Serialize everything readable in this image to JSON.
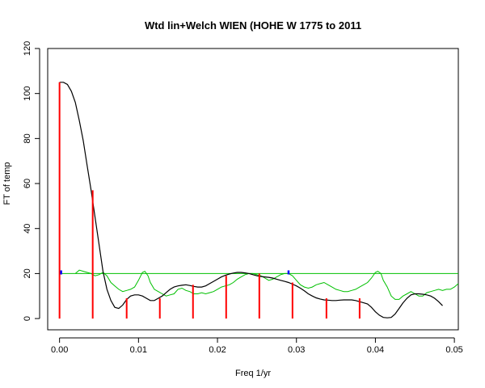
{
  "chart_data": {
    "type": "line",
    "title": "Wtd lin+Welch WIEN (HOHE W 1775 to 2011",
    "xlabel": "Freq 1/yr",
    "ylabel": "FT of temp",
    "xlim": [
      -0.0015,
      0.0505
    ],
    "ylim": [
      -5,
      120
    ],
    "x_ticks": [
      "0.00",
      "0.01",
      "0.02",
      "0.03",
      "0.04",
      "0.05"
    ],
    "y_ticks": [
      "0",
      "20",
      "40",
      "60",
      "80",
      "100",
      "120"
    ],
    "grid": false,
    "legend": "none",
    "colors": {
      "curve": "#000000",
      "noise": "#00c000",
      "threshold": "#00c000",
      "harmonics": "#ff0000",
      "markers": "#0000ff"
    },
    "series": [
      {
        "style": "black-line",
        "points": [
          [
            0.0,
            105
          ],
          [
            0.0005,
            105
          ],
          [
            0.001,
            104
          ],
          [
            0.0015,
            101
          ],
          [
            0.002,
            96
          ],
          [
            0.0025,
            88
          ],
          [
            0.003,
            79
          ],
          [
            0.0035,
            68
          ],
          [
            0.004,
            57
          ],
          [
            0.0045,
            45
          ],
          [
            0.005,
            33
          ],
          [
            0.0055,
            21
          ],
          [
            0.006,
            13
          ],
          [
            0.0065,
            8
          ],
          [
            0.007,
            5
          ],
          [
            0.0075,
            4.5
          ],
          [
            0.008,
            6
          ],
          [
            0.0085,
            8.5
          ],
          [
            0.009,
            10
          ],
          [
            0.0095,
            10.5
          ],
          [
            0.01,
            10.5
          ],
          [
            0.0105,
            10
          ],
          [
            0.011,
            9
          ],
          [
            0.0115,
            8
          ],
          [
            0.012,
            8
          ],
          [
            0.0125,
            9
          ],
          [
            0.013,
            10
          ],
          [
            0.0135,
            11.5
          ],
          [
            0.014,
            13
          ],
          [
            0.0145,
            14
          ],
          [
            0.015,
            14.5
          ],
          [
            0.0155,
            14.8
          ],
          [
            0.016,
            15
          ],
          [
            0.0165,
            14.7
          ],
          [
            0.017,
            14.3
          ],
          [
            0.0175,
            14
          ],
          [
            0.018,
            14
          ],
          [
            0.0185,
            14.5
          ],
          [
            0.019,
            15.5
          ],
          [
            0.0195,
            16.5
          ],
          [
            0.02,
            17.5
          ],
          [
            0.0205,
            18.5
          ],
          [
            0.021,
            19.2
          ],
          [
            0.0215,
            19.8
          ],
          [
            0.022,
            20.2
          ],
          [
            0.0225,
            20.5
          ],
          [
            0.023,
            20.5
          ],
          [
            0.0235,
            20.3
          ],
          [
            0.024,
            20
          ],
          [
            0.0245,
            19.5
          ],
          [
            0.025,
            19
          ],
          [
            0.0255,
            18.7
          ],
          [
            0.026,
            18.5
          ],
          [
            0.0265,
            18.3
          ],
          [
            0.027,
            18
          ],
          [
            0.0275,
            17.5
          ],
          [
            0.028,
            17
          ],
          [
            0.0285,
            16.5
          ],
          [
            0.029,
            16
          ],
          [
            0.0295,
            15.3
          ],
          [
            0.03,
            14.5
          ],
          [
            0.0305,
            13.5
          ],
          [
            0.031,
            12.3
          ],
          [
            0.0315,
            11
          ],
          [
            0.032,
            10
          ],
          [
            0.0325,
            9.2
          ],
          [
            0.033,
            8.7
          ],
          [
            0.0335,
            8.3
          ],
          [
            0.034,
            8.2
          ],
          [
            0.0345,
            8
          ],
          [
            0.035,
            8
          ],
          [
            0.0355,
            8.2
          ],
          [
            0.036,
            8.3
          ],
          [
            0.0365,
            8.3
          ],
          [
            0.037,
            8.3
          ],
          [
            0.0375,
            8
          ],
          [
            0.038,
            7.5
          ],
          [
            0.0385,
            7
          ],
          [
            0.039,
            6.5
          ],
          [
            0.0395,
            5
          ],
          [
            0.04,
            3
          ],
          [
            0.0405,
            1.5
          ],
          [
            0.041,
            0.5
          ],
          [
            0.0415,
            0.3
          ],
          [
            0.042,
            0.5
          ],
          [
            0.0425,
            2
          ],
          [
            0.043,
            4.5
          ],
          [
            0.0435,
            7
          ],
          [
            0.044,
            9
          ],
          [
            0.0445,
            10.5
          ],
          [
            0.045,
            11
          ],
          [
            0.0455,
            11
          ],
          [
            0.046,
            10.8
          ],
          [
            0.0465,
            10.5
          ],
          [
            0.047,
            10
          ],
          [
            0.0475,
            9
          ],
          [
            0.048,
            7.5
          ],
          [
            0.0485,
            5.7
          ]
        ]
      },
      {
        "style": "green-noise-line",
        "points": [
          [
            0.002,
            20
          ],
          [
            0.0025,
            21.5
          ],
          [
            0.003,
            21
          ],
          [
            0.0035,
            20.5
          ],
          [
            0.004,
            20
          ],
          [
            0.0045,
            19
          ],
          [
            0.005,
            19.5
          ],
          [
            0.0055,
            20.5
          ],
          [
            0.006,
            19
          ],
          [
            0.0065,
            16
          ],
          [
            0.007,
            14.5
          ],
          [
            0.0075,
            13
          ],
          [
            0.008,
            12
          ],
          [
            0.0085,
            12.5
          ],
          [
            0.009,
            13
          ],
          [
            0.0095,
            14
          ],
          [
            0.01,
            17
          ],
          [
            0.0105,
            20.5
          ],
          [
            0.0108,
            21
          ],
          [
            0.0112,
            19
          ],
          [
            0.0115,
            16
          ],
          [
            0.012,
            13
          ],
          [
            0.0125,
            12
          ],
          [
            0.013,
            11
          ],
          [
            0.0135,
            10
          ],
          [
            0.014,
            10.5
          ],
          [
            0.0145,
            11
          ],
          [
            0.015,
            13
          ],
          [
            0.0155,
            13.5
          ],
          [
            0.016,
            12.5
          ],
          [
            0.0165,
            12
          ],
          [
            0.017,
            11
          ],
          [
            0.0175,
            11
          ],
          [
            0.018,
            11.5
          ],
          [
            0.0185,
            11
          ],
          [
            0.019,
            11.5
          ],
          [
            0.0195,
            12
          ],
          [
            0.02,
            13
          ],
          [
            0.0205,
            14
          ],
          [
            0.021,
            14.5
          ],
          [
            0.0215,
            15
          ],
          [
            0.022,
            16
          ],
          [
            0.0225,
            17.5
          ],
          [
            0.023,
            18.5
          ],
          [
            0.0235,
            19.5
          ],
          [
            0.024,
            20
          ],
          [
            0.0245,
            20
          ],
          [
            0.025,
            19.5
          ],
          [
            0.0255,
            19
          ],
          [
            0.026,
            18
          ],
          [
            0.0265,
            17
          ],
          [
            0.027,
            17.5
          ],
          [
            0.0275,
            18.5
          ],
          [
            0.028,
            19.5
          ],
          [
            0.0285,
            20
          ],
          [
            0.029,
            20
          ],
          [
            0.0295,
            19
          ],
          [
            0.03,
            17
          ],
          [
            0.0305,
            15
          ],
          [
            0.031,
            14
          ],
          [
            0.0315,
            13.5
          ],
          [
            0.032,
            14
          ],
          [
            0.0325,
            15
          ],
          [
            0.033,
            15.5
          ],
          [
            0.0335,
            16
          ],
          [
            0.034,
            15
          ],
          [
            0.0345,
            14
          ],
          [
            0.035,
            13
          ],
          [
            0.0355,
            12.5
          ],
          [
            0.036,
            12
          ],
          [
            0.0365,
            12
          ],
          [
            0.037,
            12.5
          ],
          [
            0.0375,
            13
          ],
          [
            0.038,
            14
          ],
          [
            0.0385,
            15
          ],
          [
            0.039,
            16
          ],
          [
            0.0395,
            18
          ],
          [
            0.04,
            20.5
          ],
          [
            0.0403,
            21
          ],
          [
            0.0407,
            20
          ],
          [
            0.041,
            17
          ],
          [
            0.0415,
            14
          ],
          [
            0.042,
            10
          ],
          [
            0.0425,
            8.5
          ],
          [
            0.043,
            8.5
          ],
          [
            0.0435,
            10
          ],
          [
            0.044,
            11
          ],
          [
            0.0445,
            12
          ],
          [
            0.045,
            11
          ],
          [
            0.0455,
            10
          ],
          [
            0.046,
            10
          ],
          [
            0.0465,
            11.5
          ],
          [
            0.047,
            12
          ],
          [
            0.0475,
            12.5
          ],
          [
            0.048,
            13
          ],
          [
            0.0485,
            12.5
          ],
          [
            0.049,
            13
          ],
          [
            0.0495,
            13
          ],
          [
            0.05,
            14
          ],
          [
            0.0505,
            15.5
          ]
        ]
      }
    ],
    "threshold": {
      "y": 20,
      "x": [
        0.0,
        0.0505
      ]
    },
    "harmonics": [
      {
        "x": 0.0,
        "y": 105
      },
      {
        "x": 0.0042,
        "y": 57
      },
      {
        "x": 0.0085,
        "y": 9
      },
      {
        "x": 0.0127,
        "y": 9
      },
      {
        "x": 0.0169,
        "y": 15
      },
      {
        "x": 0.0211,
        "y": 19
      },
      {
        "x": 0.0253,
        "y": 20
      },
      {
        "x": 0.0295,
        "y": 16
      },
      {
        "x": 0.0338,
        "y": 9
      },
      {
        "x": 0.038,
        "y": 9
      }
    ],
    "markers": [
      {
        "x": 0.0002,
        "y": 20.5
      },
      {
        "x": 0.029,
        "y": 20.5
      }
    ]
  }
}
